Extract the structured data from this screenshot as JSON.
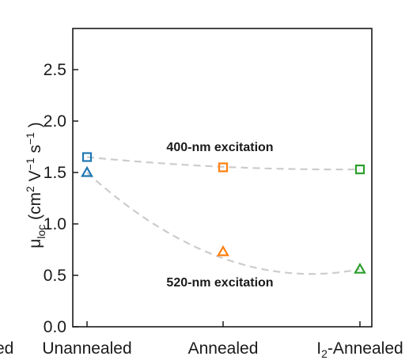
{
  "chart_data": {
    "type": "scatter",
    "categories": [
      "Unannealed",
      "Annealed",
      "I2-Annealed"
    ],
    "category_labels": [
      {
        "main": "Unannealed",
        "sub": "",
        "rest": ""
      },
      {
        "main": "Annealed",
        "sub": "",
        "rest": ""
      },
      {
        "main": "I",
        "sub": "2",
        "rest": "-Annealed"
      }
    ],
    "left_edge_fragment": "ed",
    "series": [
      {
        "name": "400-nm excitation",
        "marker": "square",
        "values": [
          1.65,
          1.55,
          1.53
        ]
      },
      {
        "name": "520-nm excitation",
        "marker": "triangle",
        "values": [
          1.5,
          0.73,
          0.56
        ]
      }
    ],
    "point_colors": [
      "#1f77b4",
      "#ff7f0e",
      "#2ca02c"
    ],
    "trend_line_color": "#cccccc",
    "ylim": [
      0,
      2.9
    ],
    "yticks": [
      "0.0",
      "0.5",
      "1.0",
      "1.5",
      "2.0",
      "2.5"
    ],
    "ylabel": {
      "mu": "μ",
      "loc": "loc",
      "open": " (cm",
      "two": "2",
      "v": " V",
      "m1": "−1",
      "s": " s",
      "m1b": "−1",
      "close": " )"
    },
    "annotations": [
      "400-nm excitation",
      "520-nm excitation"
    ],
    "grid": false,
    "legend": "none"
  }
}
